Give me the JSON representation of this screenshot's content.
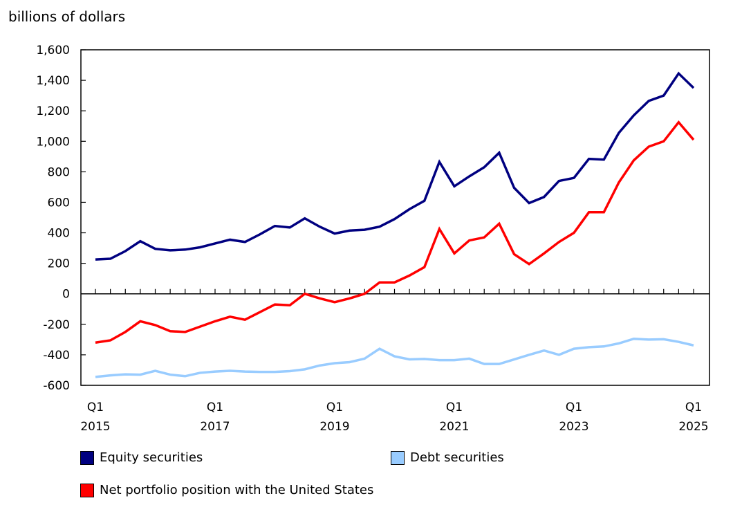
{
  "chart_data": {
    "type": "line",
    "ylabel": "billions of dollars",
    "ylim": [
      -600,
      1600
    ],
    "yticks": [
      1600,
      1400,
      1200,
      1000,
      800,
      600,
      400,
      200,
      0,
      -200,
      -400,
      -600
    ],
    "ytick_labels": [
      "1,600",
      "1,400",
      "1,200",
      "1,000",
      "800",
      "600",
      "400",
      "200",
      "0",
      "-200",
      "-400",
      "-600"
    ],
    "x": [
      "2015Q1",
      "2015Q2",
      "2015Q3",
      "2015Q4",
      "2016Q1",
      "2016Q2",
      "2016Q3",
      "2016Q4",
      "2017Q1",
      "2017Q2",
      "2017Q3",
      "2017Q4",
      "2018Q1",
      "2018Q2",
      "2018Q3",
      "2018Q4",
      "2019Q1",
      "2019Q2",
      "2019Q3",
      "2019Q4",
      "2020Q1",
      "2020Q2",
      "2020Q3",
      "2020Q4",
      "2021Q1",
      "2021Q2",
      "2021Q3",
      "2021Q4",
      "2022Q1",
      "2022Q2",
      "2022Q3",
      "2022Q4",
      "2023Q1",
      "2023Q2",
      "2023Q3",
      "2023Q4",
      "2024Q1",
      "2024Q2",
      "2024Q3",
      "2024Q4",
      "2025Q1"
    ],
    "xtick_labels": [
      {
        "q": "Q1",
        "year": "2015",
        "index": 0
      },
      {
        "q": "Q1",
        "year": "2017",
        "index": 8
      },
      {
        "q": "Q1",
        "year": "2019",
        "index": 16
      },
      {
        "q": "Q1",
        "year": "2021",
        "index": 24
      },
      {
        "q": "Q1",
        "year": "2023",
        "index": 32
      },
      {
        "q": "Q1",
        "year": "2025",
        "index": 40
      }
    ],
    "grid": false,
    "legend_placement": "bottom",
    "series": [
      {
        "name": "Equity securities",
        "color": "#000080",
        "values": [
          225,
          230,
          280,
          345,
          295,
          285,
          290,
          305,
          330,
          355,
          340,
          390,
          445,
          435,
          495,
          440,
          395,
          415,
          420,
          440,
          490,
          555,
          610,
          865,
          705,
          770,
          830,
          925,
          695,
          595,
          635,
          740,
          760,
          885,
          880,
          1055,
          1170,
          1265,
          1300,
          1445,
          1350
        ]
      },
      {
        "name": "Debt securities",
        "color": "#99ccff",
        "values": [
          -545,
          -535,
          -528,
          -530,
          -505,
          -530,
          -540,
          -518,
          -510,
          -505,
          -510,
          -512,
          -512,
          -507,
          -495,
          -470,
          -455,
          -448,
          -425,
          -360,
          -410,
          -430,
          -427,
          -435,
          -435,
          -425,
          -460,
          -460,
          -430,
          -400,
          -372,
          -400,
          -360,
          -350,
          -345,
          -325,
          -295,
          -300,
          -298,
          -315,
          -338
        ]
      },
      {
        "name": "Net portfolio position with the United States",
        "color": "#ff0000",
        "values": [
          -320,
          -305,
          -250,
          -180,
          -205,
          -245,
          -250,
          -215,
          -180,
          -150,
          -170,
          -120,
          -70,
          -75,
          0,
          -30,
          -55,
          -30,
          0,
          75,
          75,
          120,
          175,
          425,
          265,
          350,
          370,
          460,
          260,
          195,
          265,
          340,
          400,
          535,
          535,
          730,
          875,
          965,
          1000,
          1125,
          1010
        ]
      }
    ]
  }
}
